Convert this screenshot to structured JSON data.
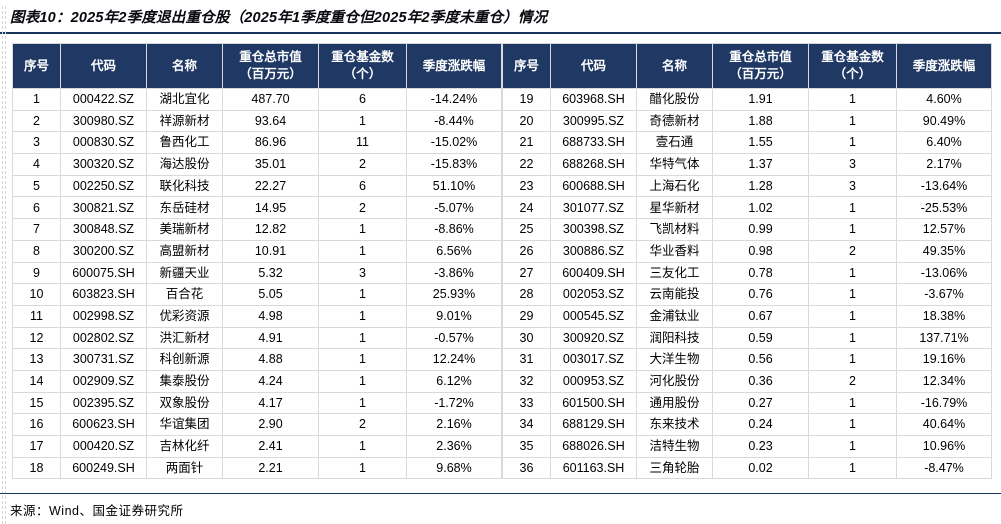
{
  "title": "图表10：2025年2季度退出重仓股（2025年1季度重仓但2025年2季度未重仓）情况",
  "source": "来源：Wind、国金证券研究所",
  "colors": {
    "header_bg": "#1f3864",
    "header_text": "#ffffff",
    "cell_border": "#d9d9d9",
    "rule_line": "#17365d",
    "body_text": "#000000"
  },
  "table": {
    "headers": [
      "序号",
      "代码",
      "名称",
      "重仓总市值\n（百万元）",
      "重仓基金数\n（个）",
      "季度涨跌幅"
    ],
    "left_rows": [
      [
        "1",
        "000422.SZ",
        "湖北宜化",
        "487.70",
        "6",
        "-14.24%"
      ],
      [
        "2",
        "300980.SZ",
        "祥源新材",
        "93.64",
        "1",
        "-8.44%"
      ],
      [
        "3",
        "000830.SZ",
        "鲁西化工",
        "86.96",
        "11",
        "-15.02%"
      ],
      [
        "4",
        "300320.SZ",
        "海达股份",
        "35.01",
        "2",
        "-15.83%"
      ],
      [
        "5",
        "002250.SZ",
        "联化科技",
        "22.27",
        "6",
        "51.10%"
      ],
      [
        "6",
        "300821.SZ",
        "东岳硅材",
        "14.95",
        "2",
        "-5.07%"
      ],
      [
        "7",
        "300848.SZ",
        "美瑞新材",
        "12.82",
        "1",
        "-8.86%"
      ],
      [
        "8",
        "300200.SZ",
        "高盟新材",
        "10.91",
        "1",
        "6.56%"
      ],
      [
        "9",
        "600075.SH",
        "新疆天业",
        "5.32",
        "3",
        "-3.86%"
      ],
      [
        "10",
        "603823.SH",
        "百合花",
        "5.05",
        "1",
        "25.93%"
      ],
      [
        "11",
        "002998.SZ",
        "优彩资源",
        "4.98",
        "1",
        "9.01%"
      ],
      [
        "12",
        "002802.SZ",
        "洪汇新材",
        "4.91",
        "1",
        "-0.57%"
      ],
      [
        "13",
        "300731.SZ",
        "科创新源",
        "4.88",
        "1",
        "12.24%"
      ],
      [
        "14",
        "002909.SZ",
        "集泰股份",
        "4.24",
        "1",
        "6.12%"
      ],
      [
        "15",
        "002395.SZ",
        "双象股份",
        "4.17",
        "1",
        "-1.72%"
      ],
      [
        "16",
        "600623.SH",
        "华谊集团",
        "2.90",
        "2",
        "2.16%"
      ],
      [
        "17",
        "000420.SZ",
        "吉林化纤",
        "2.41",
        "1",
        "2.36%"
      ],
      [
        "18",
        "600249.SH",
        "两面针",
        "2.21",
        "1",
        "9.68%"
      ]
    ],
    "right_rows": [
      [
        "19",
        "603968.SH",
        "醋化股份",
        "1.91",
        "1",
        "4.60%"
      ],
      [
        "20",
        "300995.SZ",
        "奇德新材",
        "1.88",
        "1",
        "90.49%"
      ],
      [
        "21",
        "688733.SH",
        "壹石通",
        "1.55",
        "1",
        "6.40%"
      ],
      [
        "22",
        "688268.SH",
        "华特气体",
        "1.37",
        "3",
        "2.17%"
      ],
      [
        "23",
        "600688.SH",
        "上海石化",
        "1.28",
        "3",
        "-13.64%"
      ],
      [
        "24",
        "301077.SZ",
        "星华新材",
        "1.02",
        "1",
        "-25.53%"
      ],
      [
        "25",
        "300398.SZ",
        "飞凯材料",
        "0.99",
        "1",
        "12.57%"
      ],
      [
        "26",
        "300886.SZ",
        "华业香料",
        "0.98",
        "2",
        "49.35%"
      ],
      [
        "27",
        "600409.SH",
        "三友化工",
        "0.78",
        "1",
        "-13.06%"
      ],
      [
        "28",
        "002053.SZ",
        "云南能投",
        "0.76",
        "1",
        "-3.67%"
      ],
      [
        "29",
        "000545.SZ",
        "金浦钛业",
        "0.67",
        "1",
        "18.38%"
      ],
      [
        "30",
        "300920.SZ",
        "润阳科技",
        "0.59",
        "1",
        "137.71%"
      ],
      [
        "31",
        "003017.SZ",
        "大洋生物",
        "0.56",
        "1",
        "19.16%"
      ],
      [
        "32",
        "000953.SZ",
        "河化股份",
        "0.36",
        "2",
        "12.34%"
      ],
      [
        "33",
        "601500.SH",
        "通用股份",
        "0.27",
        "1",
        "-16.79%"
      ],
      [
        "34",
        "688129.SH",
        "东来技术",
        "0.24",
        "1",
        "40.64%"
      ],
      [
        "35",
        "688026.SH",
        "洁特生物",
        "0.23",
        "1",
        "10.96%"
      ],
      [
        "36",
        "601163.SH",
        "三角轮胎",
        "0.02",
        "1",
        "-8.47%"
      ]
    ]
  }
}
